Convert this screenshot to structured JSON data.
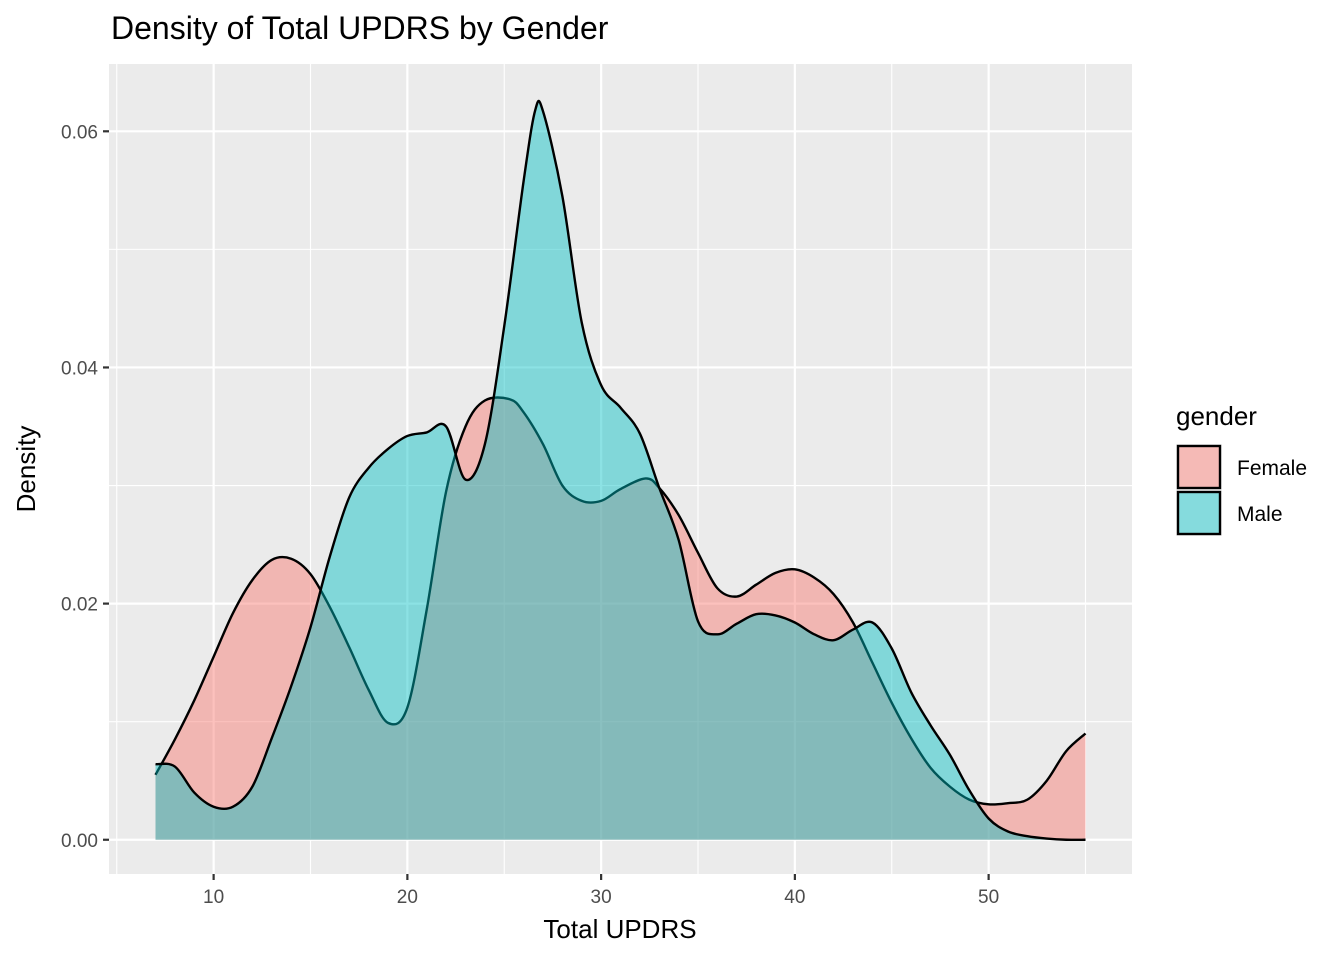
{
  "chart_data": {
    "type": "area",
    "title": "Density of Total UPDRS by Gender",
    "xlabel": "Total UPDRS",
    "ylabel": "Density",
    "xlim": [
      4.6,
      57.4
    ],
    "ylim": [
      -0.0029,
      0.0657
    ],
    "x_ticks": [
      10,
      20,
      30,
      40,
      50
    ],
    "x_tick_labels": [
      "10",
      "20",
      "30",
      "40",
      "50"
    ],
    "y_ticks": [
      0.0,
      0.02,
      0.04,
      0.06
    ],
    "y_tick_labels": [
      "0.00",
      "0.02",
      "0.04",
      "0.06"
    ],
    "grid": true,
    "panel_background": "#EBEBEB",
    "legend": {
      "title": "gender",
      "placement": "right",
      "entries": [
        "Female",
        "Male"
      ]
    },
    "series": [
      {
        "name": "Female",
        "color": "#F8766D",
        "fill_opacity": 0.45,
        "x": [
          7.0,
          8.0,
          9.0,
          10.0,
          11.0,
          12.0,
          13.0,
          14.0,
          15.0,
          16.0,
          17.0,
          18.0,
          19.0,
          20.0,
          21.0,
          22.0,
          23.0,
          24.0,
          25.3,
          26.0,
          27.0,
          28.0,
          29.0,
          30.0,
          31.0,
          32.3,
          33.0,
          34.0,
          35.0,
          36.0,
          37.0,
          38.0,
          39.0,
          40.0,
          41.0,
          42.0,
          43.0,
          44.0,
          45.0,
          46.0,
          47.0,
          48.0,
          49.0,
          50.0,
          51.0,
          52.0,
          53.0,
          54.0,
          55.0
        ],
        "y": [
          0.0055,
          0.0085,
          0.0118,
          0.0155,
          0.0192,
          0.022,
          0.0237,
          0.0238,
          0.0225,
          0.0197,
          0.0163,
          0.0127,
          0.0099,
          0.0112,
          0.0195,
          0.0295,
          0.035,
          0.0372,
          0.0373,
          0.0362,
          0.0335,
          0.03,
          0.0287,
          0.0287,
          0.0297,
          0.0306,
          0.0298,
          0.0275,
          0.0243,
          0.0213,
          0.0206,
          0.0216,
          0.0226,
          0.0229,
          0.0222,
          0.0208,
          0.0184,
          0.015,
          0.0116,
          0.0086,
          0.0061,
          0.0045,
          0.0034,
          0.003,
          0.0031,
          0.0034,
          0.005,
          0.0075,
          0.009
        ]
      },
      {
        "name": "Male",
        "color": "#00BFC4",
        "fill_opacity": 0.45,
        "x": [
          7.0,
          8.0,
          9.0,
          10.0,
          11.0,
          12.0,
          13.0,
          14.0,
          15.0,
          16.0,
          17.0,
          18.0,
          19.0,
          20.0,
          21.0,
          22.0,
          23.0,
          24.0,
          25.0,
          26.0,
          26.6,
          27.0,
          28.0,
          29.0,
          30.0,
          31.0,
          32.0,
          33.0,
          34.0,
          35.0,
          36.0,
          37.0,
          38.0,
          39.0,
          40.0,
          41.0,
          42.0,
          43.0,
          44.0,
          45.0,
          46.0,
          47.0,
          48.0,
          49.0,
          50.0,
          51.0,
          52.0,
          53.0,
          54.0,
          55.0
        ],
        "y": [
          0.0064,
          0.0062,
          0.004,
          0.0028,
          0.0028,
          0.0045,
          0.0086,
          0.013,
          0.018,
          0.024,
          0.029,
          0.0315,
          0.0331,
          0.0342,
          0.0345,
          0.035,
          0.0305,
          0.0335,
          0.0435,
          0.0558,
          0.0618,
          0.0617,
          0.0545,
          0.0438,
          0.0385,
          0.0366,
          0.0344,
          0.0298,
          0.0254,
          0.0185,
          0.0174,
          0.0183,
          0.0191,
          0.019,
          0.0184,
          0.0174,
          0.0169,
          0.0178,
          0.0184,
          0.0162,
          0.0125,
          0.0097,
          0.0072,
          0.0042,
          0.0018,
          0.0007,
          0.0003,
          0.0001,
          0.0,
          0.0
        ]
      }
    ]
  }
}
